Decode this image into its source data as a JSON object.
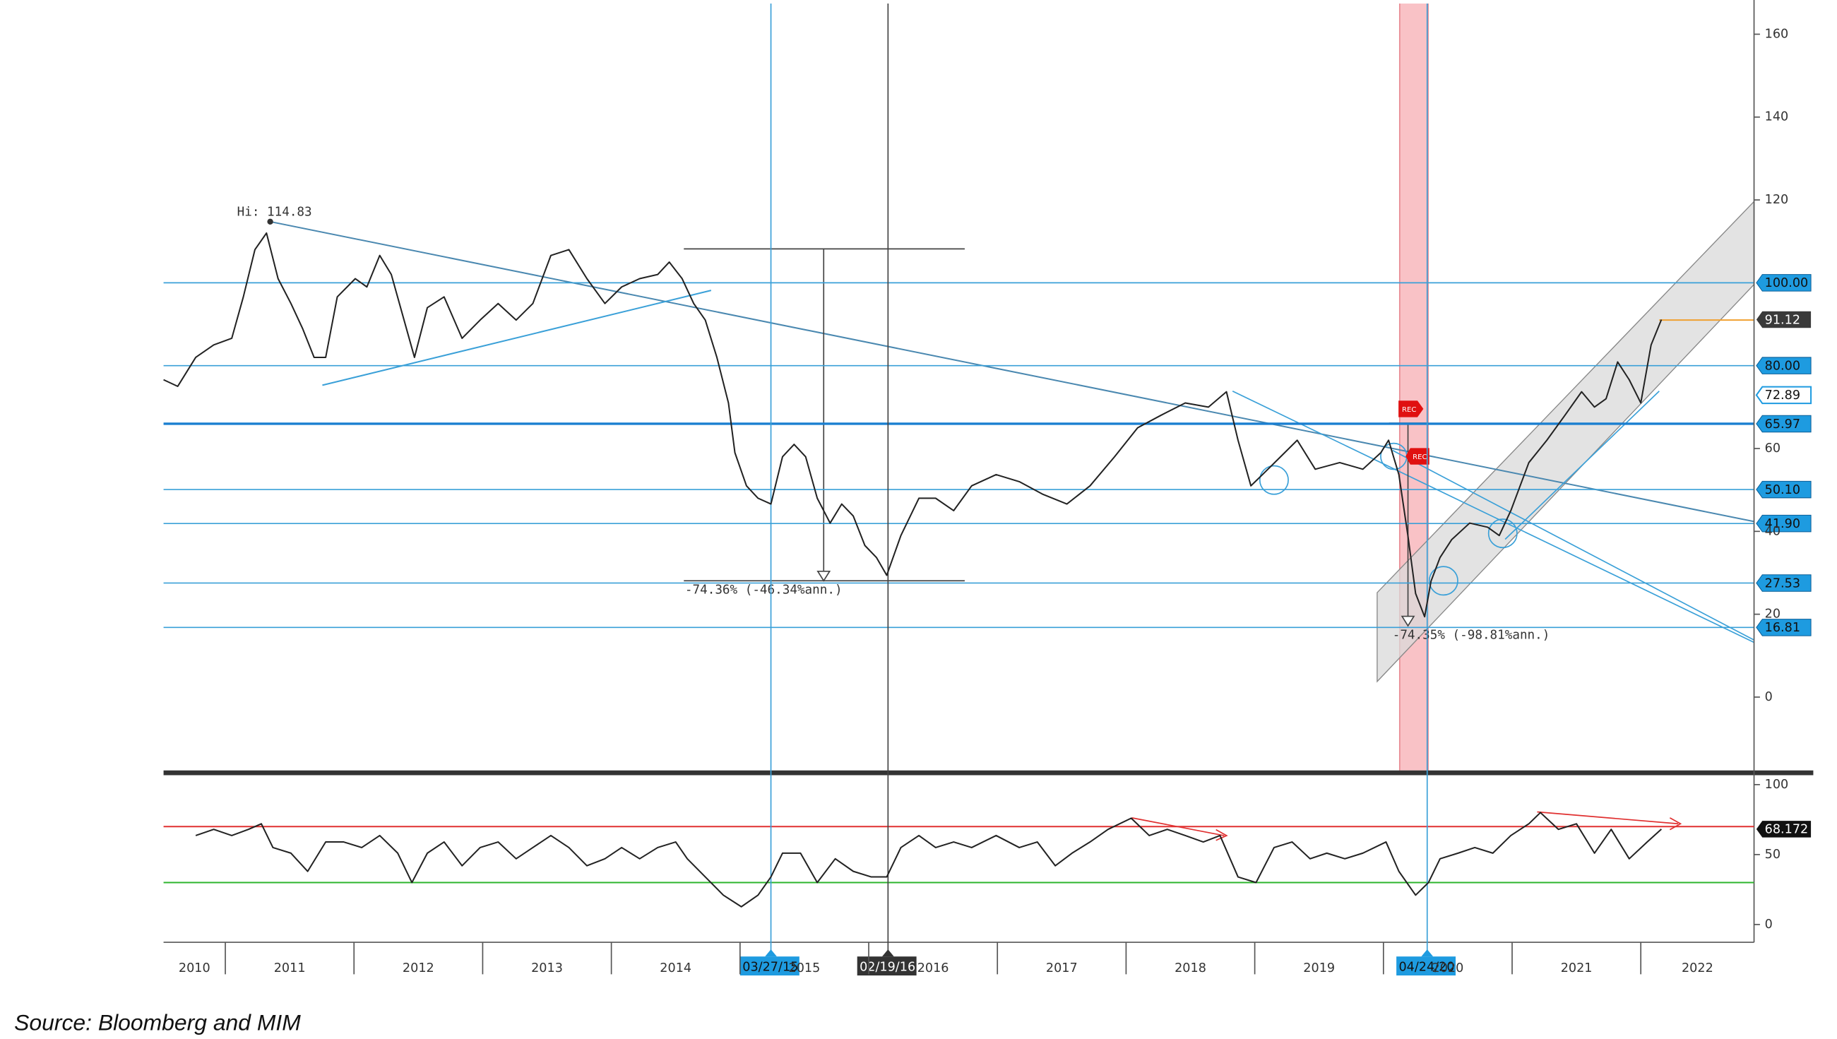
{
  "source": "Source: Bloomberg and MIM",
  "chart_data": [
    {
      "type": "line",
      "x": [
        2010.52,
        2010.63,
        2010.77,
        2010.91,
        2011.05,
        2011.14,
        2011.23,
        2011.32,
        2011.41,
        2011.51,
        2011.6,
        2011.69,
        2011.78,
        2011.87,
        2012.01,
        2012.1,
        2012.2,
        2012.29,
        2012.38,
        2012.47,
        2012.57,
        2012.7,
        2012.84,
        2012.98,
        2013.12,
        2013.26,
        2013.39,
        2013.53,
        2013.67,
        2013.81,
        2013.95,
        2014.08,
        2014.22,
        2014.36,
        2014.45,
        2014.55,
        2014.64,
        2014.73,
        2014.82,
        2014.91,
        2014.96,
        2015.05,
        2015.14,
        2015.24,
        2015.33,
        2015.42,
        2015.51,
        2015.6,
        2015.7,
        2015.79,
        2015.88,
        2015.97,
        2016.06,
        2016.14,
        2016.25,
        2016.39,
        2016.52,
        2016.66,
        2016.8,
        2016.99,
        2017.17,
        2017.35,
        2017.54,
        2017.72,
        2017.91,
        2018.09,
        2018.27,
        2018.46,
        2018.64,
        2018.78,
        2018.87,
        2018.97,
        2019.06,
        2019.2,
        2019.33,
        2019.47,
        2019.66,
        2019.84,
        2019.98,
        2020.04,
        2020.12,
        2020.19,
        2020.25,
        2020.32,
        2020.37,
        2020.44,
        2020.53,
        2020.67,
        2020.81,
        2020.9,
        2020.99,
        2021.13,
        2021.27,
        2021.41,
        2021.54,
        2021.64,
        2021.73,
        2021.82,
        2021.91,
        2022.0,
        2022.08,
        2022.16
      ],
      "series": [
        {
          "color": "#222222",
          "values": [
            76.6,
            75,
            82,
            85,
            86.6,
            96.6,
            108,
            112,
            101,
            95,
            89,
            82,
            82,
            96.6,
            101,
            99,
            106.6,
            102,
            92,
            82,
            94,
            96.6,
            86.6,
            91,
            95,
            91,
            95,
            106.6,
            108,
            101,
            95,
            99,
            101,
            102,
            105,
            101,
            95,
            91,
            82,
            71,
            59,
            51,
            48,
            46.6,
            58,
            61,
            58,
            48,
            42,
            46.6,
            43.7,
            36.6,
            33.7,
            29.4,
            39,
            48,
            48,
            45,
            51,
            53.7,
            52,
            49,
            46.6,
            51,
            58,
            65,
            68,
            71,
            70,
            73.7,
            62,
            51,
            53.7,
            58,
            62,
            55,
            56.6,
            55,
            59,
            62,
            53.7,
            39,
            25,
            19.4,
            28,
            33.7,
            38,
            42,
            41,
            39,
            45,
            56.6,
            62,
            68,
            73.7,
            70,
            72,
            80.9,
            76.6,
            71,
            85,
            91.12
          ]
        }
      ],
      "xlim": [
        2010.52,
        2022.88
      ],
      "ylim": [
        -17.7,
        167.4
      ],
      "yticks": [
        0,
        20,
        40,
        60,
        120,
        140,
        160
      ],
      "levels": [
        {
          "value": 100,
          "label": "100.00"
        },
        {
          "value": 80,
          "label": "80.00"
        },
        {
          "value": 65.97,
          "label": "65.97"
        },
        {
          "value": 50.1,
          "label": "50.10"
        },
        {
          "value": 41.9,
          "label": "41.90"
        },
        {
          "value": 27.53,
          "label": "27.53"
        },
        {
          "value": 16.81,
          "label": "16.81"
        }
      ],
      "tags": [
        72.89
      ],
      "vlines": [
        {
          "x": 2015.24,
          "label": "03/27/15",
          "color": "#3aa0d8"
        },
        {
          "x": 2016.15,
          "label": "02/19/16",
          "color": "#444444"
        },
        {
          "x": 2020.34,
          "label": "04/24/20",
          "color": "#3aa0d8"
        }
      ],
      "annotations": [
        "Hi: 114.83",
        "-74.36% (-46.34%ann.)",
        "-74.35% (-98.81%ann.)"
      ],
      "rec_labels": [
        "REC",
        "REC"
      ]
    },
    {
      "type": "line",
      "x": [
        2010.77,
        2010.91,
        2011.05,
        2011.18,
        2011.28,
        2011.37,
        2011.51,
        2011.64,
        2011.78,
        2011.92,
        2012.06,
        2012.2,
        2012.34,
        2012.45,
        2012.57,
        2012.7,
        2012.84,
        2012.98,
        2013.12,
        2013.26,
        2013.39,
        2013.53,
        2013.67,
        2013.81,
        2013.95,
        2014.08,
        2014.22,
        2014.36,
        2014.5,
        2014.59,
        2014.73,
        2014.87,
        2015.01,
        2015.14,
        2015.24,
        2015.33,
        2015.47,
        2015.6,
        2015.74,
        2015.88,
        2016.02,
        2016.14,
        2016.25,
        2016.39,
        2016.52,
        2016.66,
        2016.8,
        2016.99,
        2017.17,
        2017.31,
        2017.45,
        2017.58,
        2017.72,
        2017.86,
        2018.04,
        2018.18,
        2018.32,
        2018.46,
        2018.6,
        2018.73,
        2018.87,
        2019.01,
        2019.15,
        2019.29,
        2019.43,
        2019.56,
        2019.7,
        2019.84,
        2020.02,
        2020.12,
        2020.25,
        2020.35,
        2020.44,
        2020.58,
        2020.71,
        2020.85,
        2020.99,
        2021.13,
        2021.22,
        2021.36,
        2021.5,
        2021.64,
        2021.77,
        2021.91,
        2022.05,
        2022.16
      ],
      "series": [
        {
          "color": "#222222",
          "values": [
            63.6,
            68,
            63.6,
            68,
            72,
            55,
            51,
            38,
            59,
            59,
            55,
            63.6,
            51,
            30,
            51,
            59,
            42,
            55,
            59,
            47,
            55,
            63.6,
            55,
            42,
            47,
            55,
            47,
            55,
            59,
            47,
            34,
            21,
            12.7,
            21,
            34,
            51,
            51,
            30,
            47,
            38,
            34,
            34,
            55,
            63.6,
            55,
            59,
            55,
            63.6,
            55,
            59,
            42,
            51,
            59,
            68,
            76,
            63.6,
            68,
            63.6,
            59,
            63.6,
            34,
            30,
            55,
            59,
            47,
            51,
            47,
            51,
            59,
            38,
            21,
            30,
            47,
            51,
            55,
            51,
            63.6,
            72,
            80,
            68,
            72,
            51,
            68,
            47,
            59,
            68.172
          ]
        }
      ],
      "xlim": [
        2010.52,
        2022.88
      ],
      "ylim": [
        -12.7,
        105.9
      ],
      "yticks": [
        0,
        50,
        100
      ],
      "xticks": [
        2010,
        2011,
        2012,
        2013,
        2014,
        2015,
        2016,
        2017,
        2018,
        2019,
        2020,
        2021,
        2022
      ],
      "hlines": [
        {
          "value": 70,
          "color": "#e03030"
        },
        {
          "value": 30,
          "color": "#2db52d"
        }
      ]
    }
  ]
}
